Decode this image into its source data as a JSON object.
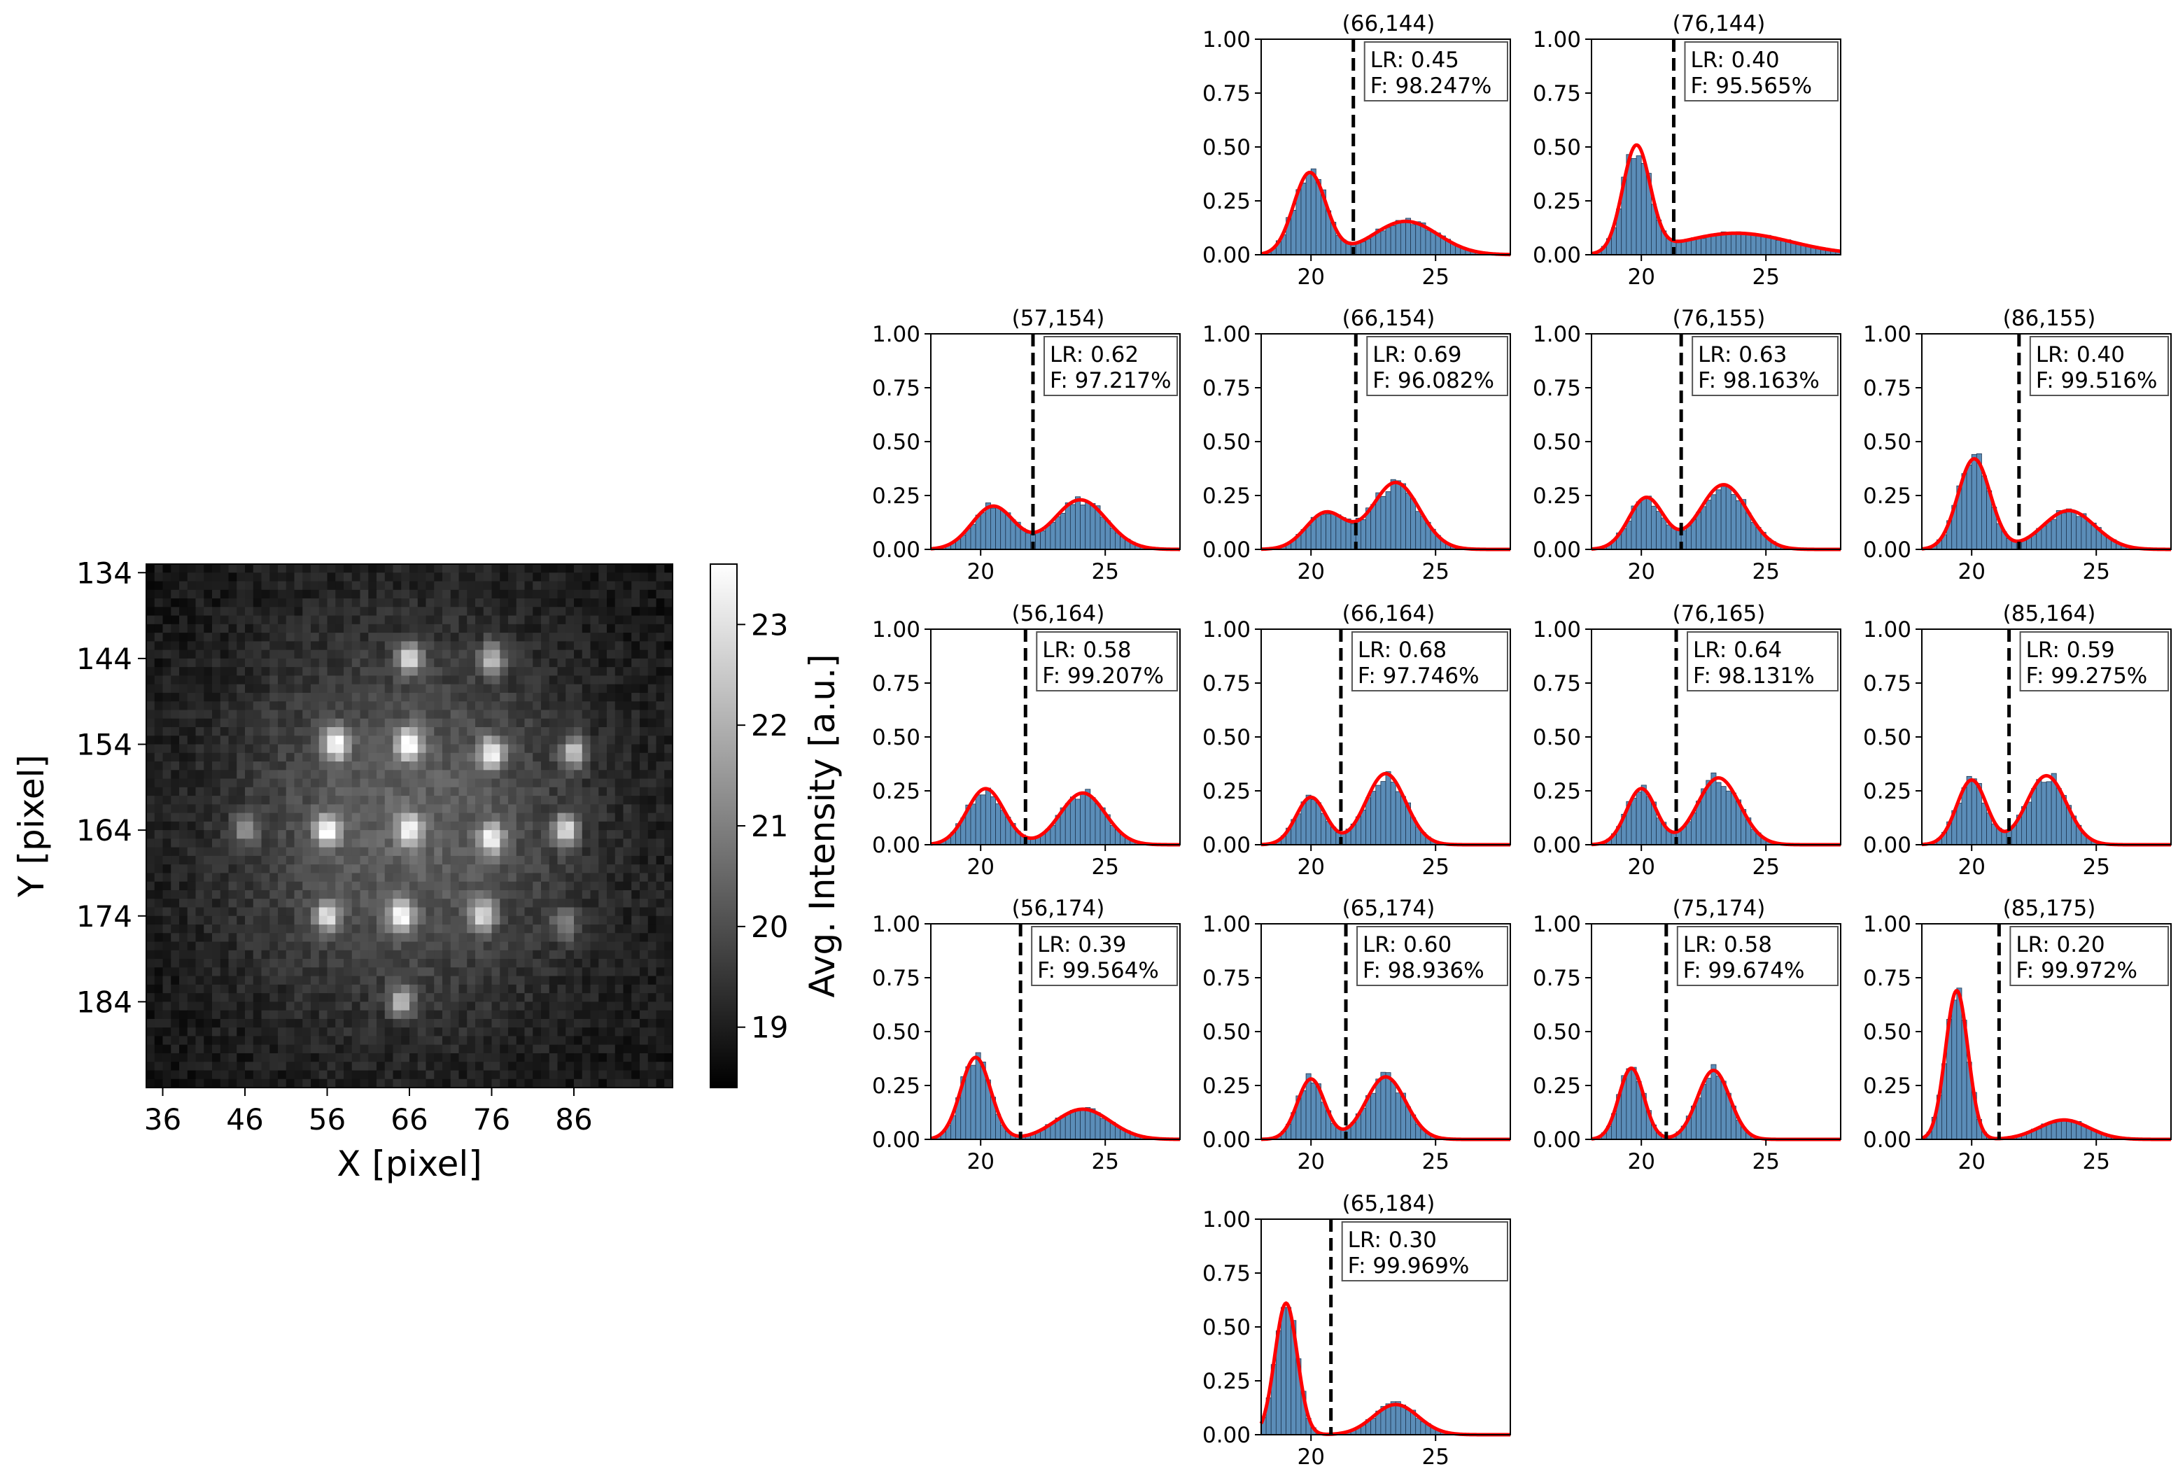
{
  "chart_data": [
    {
      "type": "heatmap",
      "xlabel": "X [pixel]",
      "ylabel": "Y [pixel]",
      "xlim": [
        34,
        98
      ],
      "ylim": [
        194,
        133
      ],
      "x_ticks": [
        36,
        46,
        56,
        66,
        76,
        86
      ],
      "y_ticks": [
        134,
        144,
        154,
        164,
        174,
        184
      ],
      "colorbar": {
        "label": "Avg. Intensity [a.u.]",
        "ticks": [
          19,
          20,
          21,
          22,
          23
        ],
        "range": [
          18.4,
          23.6
        ],
        "colormap": "gray"
      },
      "background_level": 19.4,
      "spots": [
        {
          "x": 66,
          "y": 144,
          "value": 22.8
        },
        {
          "x": 76,
          "y": 144,
          "value": 22.3
        },
        {
          "x": 57,
          "y": 154,
          "value": 23.5
        },
        {
          "x": 66,
          "y": 154,
          "value": 23.6
        },
        {
          "x": 76,
          "y": 155,
          "value": 23.2
        },
        {
          "x": 86,
          "y": 155,
          "value": 22.6
        },
        {
          "x": 46,
          "y": 164,
          "value": 21.2
        },
        {
          "x": 56,
          "y": 164,
          "value": 23.4
        },
        {
          "x": 66,
          "y": 164,
          "value": 22.9
        },
        {
          "x": 76,
          "y": 165,
          "value": 23.0
        },
        {
          "x": 85,
          "y": 164,
          "value": 23.1
        },
        {
          "x": 56,
          "y": 174,
          "value": 22.8
        },
        {
          "x": 65,
          "y": 174,
          "value": 23.3
        },
        {
          "x": 75,
          "y": 174,
          "value": 22.7
        },
        {
          "x": 85,
          "y": 175,
          "value": 21.3
        },
        {
          "x": 65,
          "y": 184,
          "value": 22.2
        }
      ]
    },
    {
      "type": "histogram",
      "xlim": [
        18,
        28
      ],
      "ylim": [
        0,
        1
      ],
      "x_ticks": [
        20,
        25
      ],
      "y_ticks": [
        "0.00",
        "0.25",
        "0.50",
        "0.75",
        "1.00"
      ],
      "bar_color": "#5b8db8",
      "fit_color": "#ff0000",
      "threshold_color": "#000000",
      "panels": [
        {
          "title": "(66,144)",
          "row": 0,
          "col": 1,
          "lr": "LR: 0.45",
          "f": "F: 98.247%",
          "threshold": 21.7,
          "peaks": [
            [
              0.38,
              19.95,
              0.65
            ],
            [
              0.155,
              23.8,
              1.3
            ]
          ]
        },
        {
          "title": "(76,144)",
          "row": 0,
          "col": 2,
          "lr": "LR: 0.40",
          "f": "F: 95.565%",
          "threshold": 21.3,
          "peaks": [
            [
              0.49,
              19.8,
              0.55
            ],
            [
              0.1,
              23.8,
              2.2
            ]
          ]
        },
        {
          "title": "(57,154)",
          "row": 1,
          "col": 0,
          "lr": "LR: 0.62",
          "f": "F: 97.217%",
          "threshold": 22.1,
          "peaks": [
            [
              0.2,
              20.5,
              0.85
            ],
            [
              0.23,
              24.0,
              1.05
            ]
          ]
        },
        {
          "title": "(66,154)",
          "row": 1,
          "col": 1,
          "lr": "LR: 0.69",
          "f": "F: 96.082%",
          "threshold": 21.8,
          "peaks": [
            [
              0.17,
              20.6,
              0.8
            ],
            [
              0.31,
              23.4,
              0.95
            ]
          ]
        },
        {
          "title": "(76,155)",
          "row": 1,
          "col": 2,
          "lr": "LR: 0.63",
          "f": "F: 98.163%",
          "threshold": 21.6,
          "peaks": [
            [
              0.24,
              20.2,
              0.7
            ],
            [
              0.3,
              23.3,
              0.95
            ]
          ]
        },
        {
          "title": "(86,155)",
          "row": 1,
          "col": 3,
          "lr": "LR: 0.40",
          "f": "F: 99.516%",
          "threshold": 21.9,
          "peaks": [
            [
              0.42,
              20.1,
              0.65
            ],
            [
              0.18,
              23.9,
              1.05
            ]
          ]
        },
        {
          "title": "(56,164)",
          "row": 2,
          "col": 0,
          "lr": "LR: 0.58",
          "f": "F: 99.207%",
          "threshold": 21.8,
          "peaks": [
            [
              0.26,
              20.2,
              0.75
            ],
            [
              0.24,
              24.1,
              0.9
            ]
          ]
        },
        {
          "title": "(66,164)",
          "row": 2,
          "col": 1,
          "lr": "LR: 0.68",
          "f": "F: 97.746%",
          "threshold": 21.2,
          "peaks": [
            [
              0.22,
              20.0,
              0.6
            ],
            [
              0.33,
              23.0,
              0.8
            ]
          ]
        },
        {
          "title": "(76,165)",
          "row": 2,
          "col": 2,
          "lr": "LR: 0.64",
          "f": "F: 98.131%",
          "threshold": 21.4,
          "peaks": [
            [
              0.26,
              20.0,
              0.6
            ],
            [
              0.31,
              23.1,
              0.85
            ]
          ]
        },
        {
          "title": "(85,164)",
          "row": 2,
          "col": 3,
          "lr": "LR: 0.59",
          "f": "F: 99.275%",
          "threshold": 21.5,
          "peaks": [
            [
              0.3,
              20.0,
              0.6
            ],
            [
              0.32,
              23.0,
              0.8
            ]
          ]
        },
        {
          "title": "(56,174)",
          "row": 3,
          "col": 0,
          "lr": "LR: 0.39",
          "f": "F: 99.564%",
          "threshold": 21.6,
          "peaks": [
            [
              0.38,
              19.8,
              0.6
            ],
            [
              0.14,
              24.1,
              1.1
            ]
          ]
        },
        {
          "title": "(65,174)",
          "row": 3,
          "col": 1,
          "lr": "LR: 0.60",
          "f": "F: 98.936%",
          "threshold": 21.4,
          "peaks": [
            [
              0.28,
              20.0,
              0.55
            ],
            [
              0.29,
              23.0,
              0.8
            ]
          ]
        },
        {
          "title": "(75,174)",
          "row": 3,
          "col": 2,
          "lr": "LR: 0.58",
          "f": "F: 99.674%",
          "threshold": 21.0,
          "peaks": [
            [
              0.33,
              19.6,
              0.5
            ],
            [
              0.32,
              22.9,
              0.65
            ]
          ]
        },
        {
          "title": "(85,175)",
          "row": 3,
          "col": 3,
          "lr": "LR: 0.20",
          "f": "F: 99.972%",
          "threshold": 21.1,
          "peaks": [
            [
              0.69,
              19.4,
              0.45
            ],
            [
              0.09,
              23.7,
              1.0
            ]
          ]
        },
        {
          "title": "(65,184)",
          "row": 4,
          "col": 1,
          "lr": "LR: 0.30",
          "f": "F: 99.969%",
          "threshold": 20.8,
          "peaks": [
            [
              0.61,
              19.0,
              0.45
            ],
            [
              0.14,
              23.4,
              0.9
            ]
          ]
        }
      ]
    }
  ]
}
